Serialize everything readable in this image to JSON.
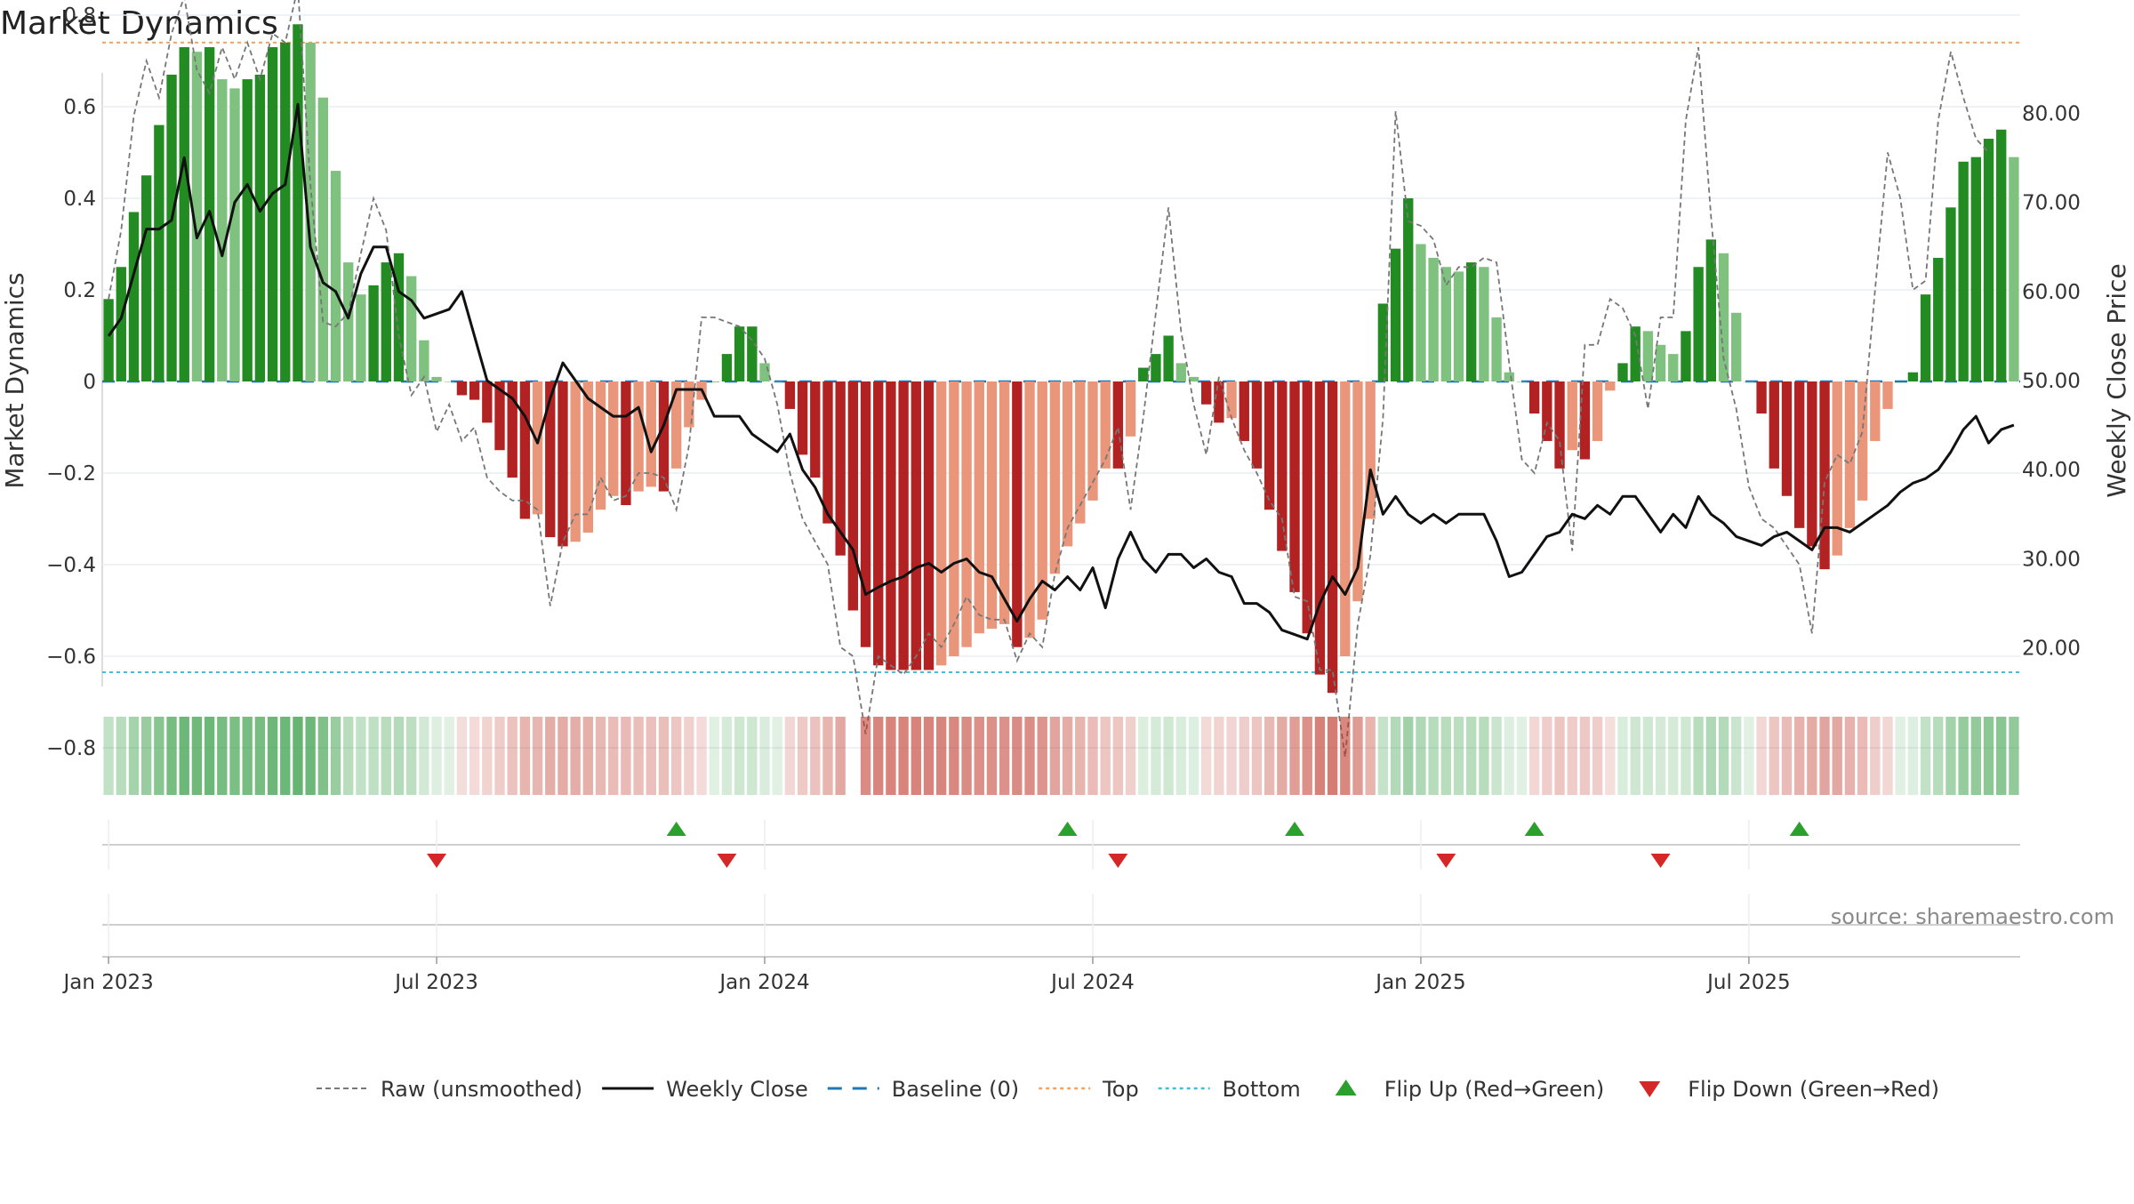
{
  "title": "Market Dynamics",
  "source_note": "source: sharemaestro.com",
  "colors": {
    "strong_green": "#228b22",
    "light_green": "#7fc17f",
    "strong_red": "#b22222",
    "light_red": "#e9967a",
    "raw_line": "#777777",
    "close_line": "#111111",
    "baseline": "#1f77b4",
    "top": "#f4a460",
    "bottom": "#3fc1d8",
    "flip_up": "#2ca02c",
    "flip_down": "#d62728"
  },
  "legend": [
    {
      "label": "Raw (unsmoothed)",
      "style": "dashed-gray"
    },
    {
      "label": "Weekly Close",
      "style": "solid-black"
    },
    {
      "label": "Baseline (0)",
      "style": "dashed-blue"
    },
    {
      "label": "Top",
      "style": "dotted-orange"
    },
    {
      "label": "Bottom",
      "style": "dotted-cyan"
    },
    {
      "label": "Flip Up (Red→Green)",
      "style": "triangle-up"
    },
    {
      "label": "Flip Down (Green→Red)",
      "style": "triangle-down"
    }
  ],
  "chart_data": {
    "type": "bar",
    "title": "Market Dynamics",
    "ylabel": "Market Dynamics",
    "y2label": "Weekly Close Price",
    "ylim": [
      -0.86,
      0.86
    ],
    "y2lim": [
      17.8,
      86.5
    ],
    "y_ticks": [
      0.8,
      0.6,
      0.4,
      0.2,
      0,
      -0.2,
      -0.4,
      -0.6,
      -0.8
    ],
    "y_tick_labels": [
      "0.8",
      "0.6",
      "0.4",
      "0.2",
      "0",
      "−0.2",
      "−0.4",
      "−0.6",
      "−0.8"
    ],
    "y2_ticks": [
      80,
      70,
      60,
      50,
      40,
      30,
      20
    ],
    "y2_tick_labels": [
      "80.00",
      "70.00",
      "60.00",
      "50.00",
      "40.00",
      "30.00",
      "20.00"
    ],
    "x_ticks": [
      {
        "label": "Jan 2023",
        "week": 1
      },
      {
        "label": "Jul 2023",
        "week": 27
      },
      {
        "label": "Jan 2024",
        "week": 53
      },
      {
        "label": "Jul 2024",
        "week": 79
      },
      {
        "label": "Jan 2025",
        "week": 105
      },
      {
        "label": "Jul 2025",
        "week": 131
      }
    ],
    "top_level": 0.74,
    "bottom_level": -0.635,
    "baseline": 0,
    "grid": true,
    "legend_position": "bottom",
    "series": [
      {
        "name": "Market Dynamics",
        "values": [
          0.18,
          0.25,
          0.37,
          0.45,
          0.56,
          0.67,
          0.73,
          0.72,
          0.73,
          0.66,
          0.64,
          0.66,
          0.67,
          0.73,
          0.74,
          0.78,
          0.74,
          0.62,
          0.46,
          0.26,
          0.19,
          0.21,
          0.26,
          0.28,
          0.23,
          0.09,
          0.01,
          0,
          -0.03,
          -0.04,
          -0.09,
          -0.15,
          -0.21,
          -0.3,
          -0.29,
          -0.34,
          -0.36,
          -0.35,
          -0.33,
          -0.28,
          -0.25,
          -0.27,
          -0.24,
          -0.23,
          -0.24,
          -0.19,
          -0.1,
          -0.04,
          0,
          0.06,
          0.12,
          0.12,
          0.04,
          0,
          -0.06,
          -0.16,
          -0.21,
          -0.31,
          -0.38,
          -0.5,
          -0.58,
          -0.62,
          -0.63,
          -0.63,
          -0.63,
          -0.63,
          -0.62,
          -0.6,
          -0.58,
          -0.55,
          -0.54,
          -0.53,
          -0.58,
          -0.56,
          -0.52,
          -0.42,
          -0.36,
          -0.31,
          -0.26,
          -0.19,
          -0.19,
          -0.12,
          0.03,
          0.06,
          0.1,
          0.04,
          0.01,
          -0.05,
          -0.09,
          -0.08,
          -0.13,
          -0.19,
          -0.28,
          -0.37,
          -0.46,
          -0.55,
          -0.64,
          -0.68,
          -0.6,
          -0.48,
          -0.3,
          0.17,
          0.29,
          0.4,
          0.3,
          0.27,
          0.25,
          0.24,
          0.26,
          0.25,
          0.14,
          0.02,
          0,
          -0.07,
          -0.13,
          -0.19,
          -0.15,
          -0.17,
          -0.13,
          -0.02,
          0.04,
          0.12,
          0.11,
          0.08,
          0.06,
          0.11,
          0.25,
          0.31,
          0.28,
          0.15,
          0,
          -0.07,
          -0.19,
          -0.25,
          -0.32,
          -0.36,
          -0.41,
          -0.38,
          -0.32,
          -0.26,
          -0.13,
          -0.06,
          0,
          0.02,
          0.19,
          0.27,
          0.38,
          0.48,
          0.49,
          0.53,
          0.55,
          0.49
        ]
      },
      {
        "name": "Raw (unsmoothed)",
        "values": [
          0.18,
          0.33,
          0.58,
          0.7,
          0.62,
          0.76,
          0.84,
          0.68,
          0.63,
          0.73,
          0.66,
          0.74,
          0.66,
          0.76,
          0.74,
          0.86,
          0.43,
          0.13,
          0.12,
          0.15,
          0.28,
          0.4,
          0.33,
          0.1,
          -0.03,
          0.01,
          -0.11,
          -0.05,
          -0.13,
          -0.1,
          -0.21,
          -0.24,
          -0.26,
          -0.26,
          -0.28,
          -0.49,
          -0.35,
          -0.29,
          -0.29,
          -0.21,
          -0.26,
          -0.25,
          -0.2,
          -0.2,
          -0.21,
          -0.28,
          -0.14,
          0.14,
          0.14,
          0.13,
          0.12,
          0.09,
          0.05,
          -0.05,
          -0.2,
          -0.3,
          -0.35,
          -0.4,
          -0.58,
          -0.6,
          -0.77,
          -0.6,
          -0.62,
          -0.64,
          -0.6,
          -0.55,
          -0.58,
          -0.53,
          -0.47,
          -0.51,
          -0.52,
          -0.52,
          -0.61,
          -0.55,
          -0.58,
          -0.42,
          -0.32,
          -0.27,
          -0.22,
          -0.17,
          -0.1,
          -0.28,
          -0.08,
          0.15,
          0.38,
          0.11,
          -0.05,
          -0.16,
          0.01,
          -0.08,
          -0.15,
          -0.2,
          -0.26,
          -0.3,
          -0.47,
          -0.48,
          -0.63,
          -0.63,
          -0.82,
          -0.53,
          -0.38,
          -0.08,
          0.59,
          0.35,
          0.34,
          0.31,
          0.21,
          0.25,
          0.25,
          0.27,
          0.26,
          0.04,
          -0.17,
          -0.2,
          -0.09,
          -0.13,
          -0.37,
          0.08,
          0.08,
          0.18,
          0.16,
          0.1,
          -0.06,
          0.14,
          0.14,
          0.57,
          0.73,
          0.36,
          0.05,
          -0.06,
          -0.23,
          -0.3,
          -0.32,
          -0.36,
          -0.4,
          -0.55,
          -0.22,
          -0.16,
          -0.18,
          -0.11,
          0.2,
          0.5,
          0.4,
          0.2,
          0.22,
          0.57,
          0.72,
          0.62,
          0.53,
          0.5
        ]
      },
      {
        "name": "Weekly Close",
        "values": [
          55,
          57,
          62,
          67,
          67,
          68,
          75,
          66,
          69,
          64,
          70,
          72,
          69,
          71,
          72,
          81,
          65,
          61,
          60,
          57,
          62,
          65,
          65,
          60,
          59,
          57,
          57.5,
          58,
          60,
          55,
          50,
          49,
          48,
          46,
          43,
          48,
          52,
          50,
          48,
          47,
          46,
          46,
          47,
          42,
          45,
          49,
          49,
          49,
          46,
          46,
          46,
          44,
          43,
          42,
          44,
          40,
          38,
          35,
          33,
          31,
          26,
          26.8,
          27.5,
          28,
          29,
          29.5,
          28.5,
          29.5,
          30,
          28.5,
          28,
          25.5,
          23,
          25.5,
          27.5,
          26.5,
          28,
          26.5,
          29,
          24.5,
          30,
          33,
          30,
          28.5,
          30.5,
          30.5,
          29,
          30,
          28.5,
          28,
          25,
          25,
          24,
          22,
          21.5,
          21,
          25,
          28,
          26,
          29,
          40,
          35,
          37,
          35,
          34,
          35,
          34,
          35,
          35,
          35,
          32,
          28,
          28.5,
          30.5,
          32.5,
          33,
          35,
          34.5,
          36,
          35,
          37,
          37,
          35,
          33,
          35,
          33.5,
          37,
          35,
          34,
          32.5,
          32,
          31.5,
          32.5,
          33,
          32,
          31,
          33.5,
          33.5,
          33,
          34,
          35,
          36,
          37.5,
          38.5,
          39,
          40,
          42,
          44.5,
          46,
          43,
          44.5,
          45
        ]
      }
    ],
    "flip_up_weeks": [
      46,
      77,
      95,
      114,
      135
    ],
    "flip_down_weeks": [
      27,
      50,
      81,
      107,
      124
    ]
  }
}
